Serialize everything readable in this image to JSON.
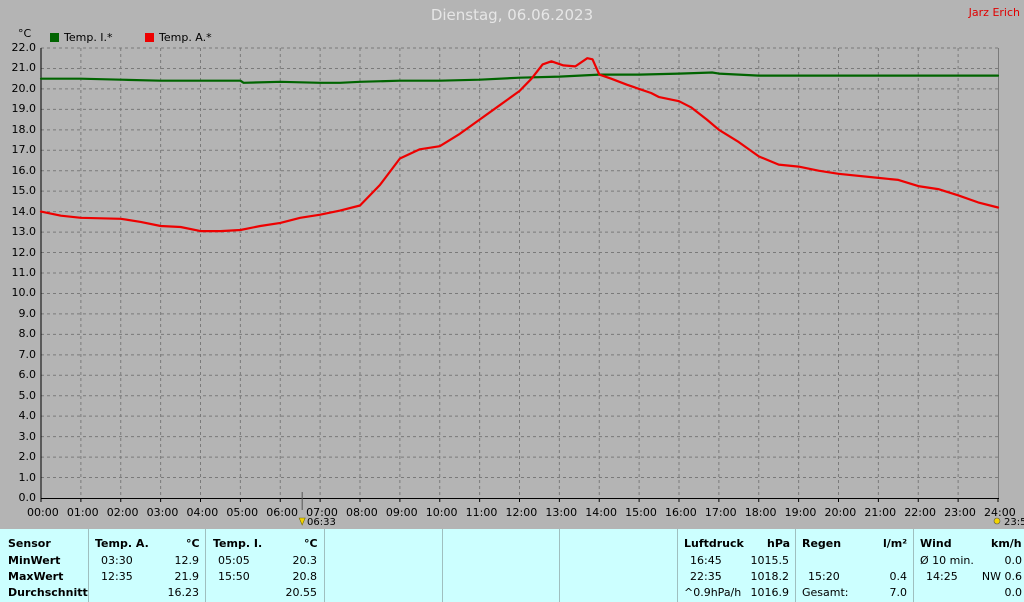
{
  "header": {
    "title": "Dienstag, 06.06.2023",
    "author": "Jarz Erich",
    "unit": "°C"
  },
  "legend": [
    {
      "label": "Temp. I.*",
      "color": "#006400"
    },
    {
      "label": "Temp. A.*",
      "color": "#ee0000"
    }
  ],
  "markers": {
    "sunrise": "06:33",
    "sunset": "23:5"
  },
  "chart_data": {
    "type": "line",
    "title": "Dienstag, 06.06.2023",
    "ylabel": "°C",
    "ylim": [
      0,
      22
    ],
    "xlim": [
      0,
      24
    ],
    "grid": true,
    "y_ticks": [
      "0.0",
      "1.0",
      "2.0",
      "3.0",
      "4.0",
      "5.0",
      "6.0",
      "7.0",
      "8.0",
      "9.0",
      "10.0",
      "11.0",
      "12.0",
      "13.0",
      "14.0",
      "15.0",
      "16.0",
      "17.0",
      "18.0",
      "19.0",
      "20.0",
      "21.0",
      "22.0"
    ],
    "x_ticks": [
      "00:00",
      "01:00",
      "02:00",
      "03:00",
      "04:00",
      "05:00",
      "06:00",
      "07:00",
      "08:00",
      "09:00",
      "10:00",
      "11:00",
      "12:00",
      "13:00",
      "14:00",
      "15:00",
      "16:00",
      "17:00",
      "18:00",
      "19:00",
      "20:00",
      "21:00",
      "22:00",
      "23:00",
      "24:00"
    ],
    "series": [
      {
        "name": "Temp. I.*",
        "color": "#006400",
        "x": [
          0,
          1,
          2,
          3,
          4,
          5,
          5.08,
          6,
          7,
          7.5,
          8,
          9,
          10,
          11,
          12,
          13,
          14,
          15,
          16,
          16.83,
          17,
          18,
          19,
          20,
          21,
          22,
          23,
          24
        ],
        "y": [
          20.5,
          20.5,
          20.45,
          20.4,
          20.4,
          20.4,
          20.3,
          20.35,
          20.3,
          20.3,
          20.35,
          20.4,
          20.4,
          20.45,
          20.55,
          20.6,
          20.7,
          20.7,
          20.75,
          20.8,
          20.75,
          20.65,
          20.65,
          20.65,
          20.65,
          20.65,
          20.65,
          20.65
        ]
      },
      {
        "name": "Temp. A.*",
        "color": "#ee0000",
        "x": [
          0,
          0.5,
          1,
          2,
          2.5,
          3,
          3.5,
          4,
          4.5,
          5,
          5.5,
          6,
          6.5,
          7,
          7.5,
          8,
          8.5,
          9,
          9.5,
          10,
          10.5,
          11,
          11.5,
          12,
          12.3,
          12.58,
          12.8,
          13.1,
          13.4,
          13.7,
          13.83,
          14,
          14.3,
          14.7,
          15,
          15.3,
          15.5,
          16,
          16.3,
          16.7,
          17,
          17.5,
          18,
          18.5,
          19,
          19.5,
          20,
          21,
          21.5,
          22,
          22.5,
          23,
          23.5,
          24
        ],
        "y": [
          14.0,
          13.8,
          13.7,
          13.65,
          13.5,
          13.3,
          13.25,
          13.05,
          13.05,
          13.1,
          13.3,
          13.45,
          13.7,
          13.85,
          14.05,
          14.3,
          15.3,
          16.6,
          17.05,
          17.2,
          17.8,
          18.5,
          19.2,
          19.9,
          20.5,
          21.2,
          21.35,
          21.15,
          21.1,
          21.5,
          21.45,
          20.7,
          20.5,
          20.2,
          20.0,
          19.8,
          19.6,
          19.4,
          19.1,
          18.5,
          18.0,
          17.4,
          16.7,
          16.3,
          16.2,
          16.0,
          15.85,
          15.65,
          15.55,
          15.25,
          15.1,
          14.8,
          14.45,
          14.2
        ]
      }
    ]
  },
  "stats": {
    "sensor": {
      "header": "Sensor",
      "min": "MinWert",
      "max": "MaxWert",
      "avg": "Durchschnitt"
    },
    "temp_a": {
      "header": "Temp. A.",
      "unit": "°C",
      "min_time": "03:30",
      "min_val": "12.9",
      "max_time": "12:35",
      "max_val": "21.9",
      "avg": "16.23"
    },
    "temp_i": {
      "header": "Temp. I.",
      "unit": "°C",
      "min_time": "05:05",
      "min_val": "20.3",
      "max_time": "15:50",
      "max_val": "20.8",
      "avg": "20.55"
    },
    "pressure": {
      "header": "Luftdruck",
      "unit": "hPa",
      "min_time": "16:45",
      "min_val": "1015.5",
      "max_time": "22:35",
      "max_val": "1018.2",
      "trend_label": "^0.9hPa/h",
      "avg": "1016.9"
    },
    "rain": {
      "header": "Regen",
      "unit": "l/m²",
      "max_time": "15:20",
      "max_val": "0.4",
      "total_label": "Gesamt:",
      "total_val": "7.0"
    },
    "wind": {
      "header": "Wind",
      "unit": "km/h",
      "avg_label": "Ø 10 min.",
      "avg_val": "0.0",
      "max_time": "14:25",
      "max_val": "NW 0.6",
      "last_val": "0.0"
    }
  }
}
